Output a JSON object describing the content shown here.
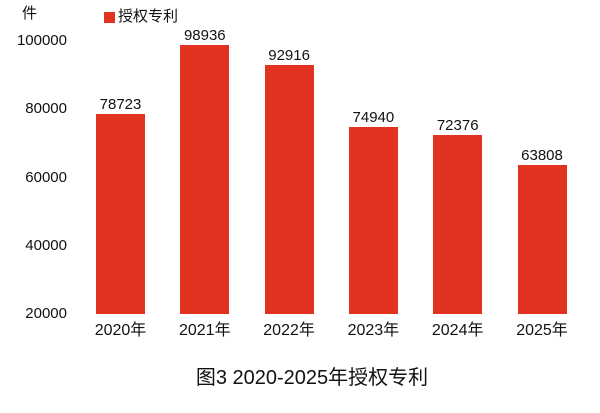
{
  "chart_data": {
    "type": "bar",
    "title": "图3 2020-2025年授权专利",
    "unit_label": "件",
    "legend": {
      "label": "授权专利",
      "position": "top"
    },
    "categories": [
      "2020年",
      "2021年",
      "2022年",
      "2023年",
      "2024年",
      "2025年"
    ],
    "values": [
      78723,
      98936,
      92916,
      74940,
      72376,
      63808
    ],
    "ytick_labels": [
      "100000",
      "80000",
      "60000",
      "40000",
      "20000"
    ],
    "yticks": [
      100000,
      80000,
      60000,
      40000,
      20000
    ],
    "ylim": [
      20000,
      100000
    ],
    "xlabel": "",
    "ylabel": "件",
    "grid": false,
    "bar_color": "#e23220",
    "text_color": "#111111",
    "background_color": "#ffffff"
  }
}
